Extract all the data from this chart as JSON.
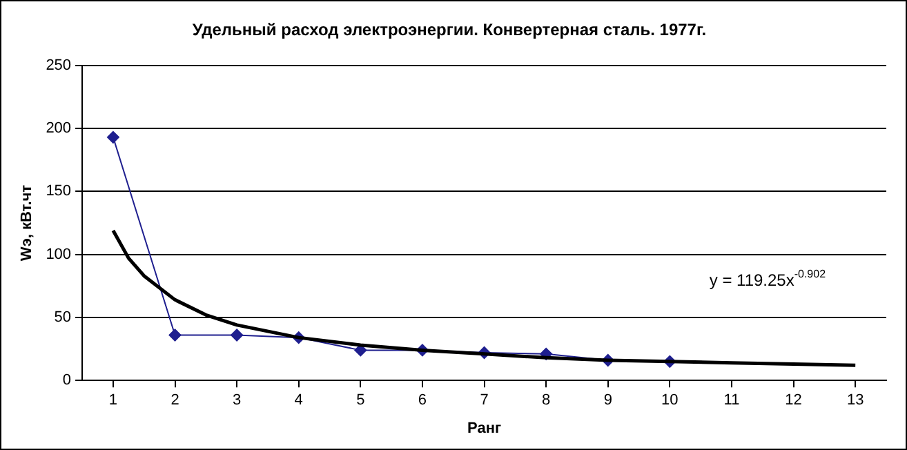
{
  "chart_data": {
    "type": "line",
    "title": "Удельный расход электроэнергии. Конвертерная сталь. 1977г.",
    "xlabel": "Ранг",
    "ylabel": "Wэ, кВт.чт",
    "x": [
      1,
      2,
      3,
      4,
      5,
      6,
      7,
      8,
      9,
      10
    ],
    "series": [
      {
        "color": "#1f1f8f",
        "marker": "diamond",
        "values": [
          193,
          36,
          36,
          34,
          24,
          24,
          22,
          21,
          16,
          15
        ]
      },
      {
        "color": "#000000",
        "marker": "none",
        "x": [
          1,
          1.25,
          1.5,
          2,
          2.5,
          3,
          4,
          5,
          6,
          7,
          8,
          9,
          10,
          11,
          12,
          13
        ],
        "values": [
          119,
          97,
          83,
          64,
          52,
          44,
          34,
          28,
          24,
          21,
          18,
          16,
          15,
          14,
          13,
          12
        ]
      }
    ],
    "xlim": [
      0.5,
      13.5
    ],
    "xticks": [
      1,
      2,
      3,
      4,
      5,
      6,
      7,
      8,
      9,
      10,
      11,
      12,
      13
    ],
    "ylim": [
      0,
      250
    ],
    "yticks": [
      0,
      50,
      100,
      150,
      200,
      250
    ],
    "grid": "y",
    "legend": false,
    "annotations": [
      "y = 119.25x$^{-0.902}$"
    ]
  }
}
